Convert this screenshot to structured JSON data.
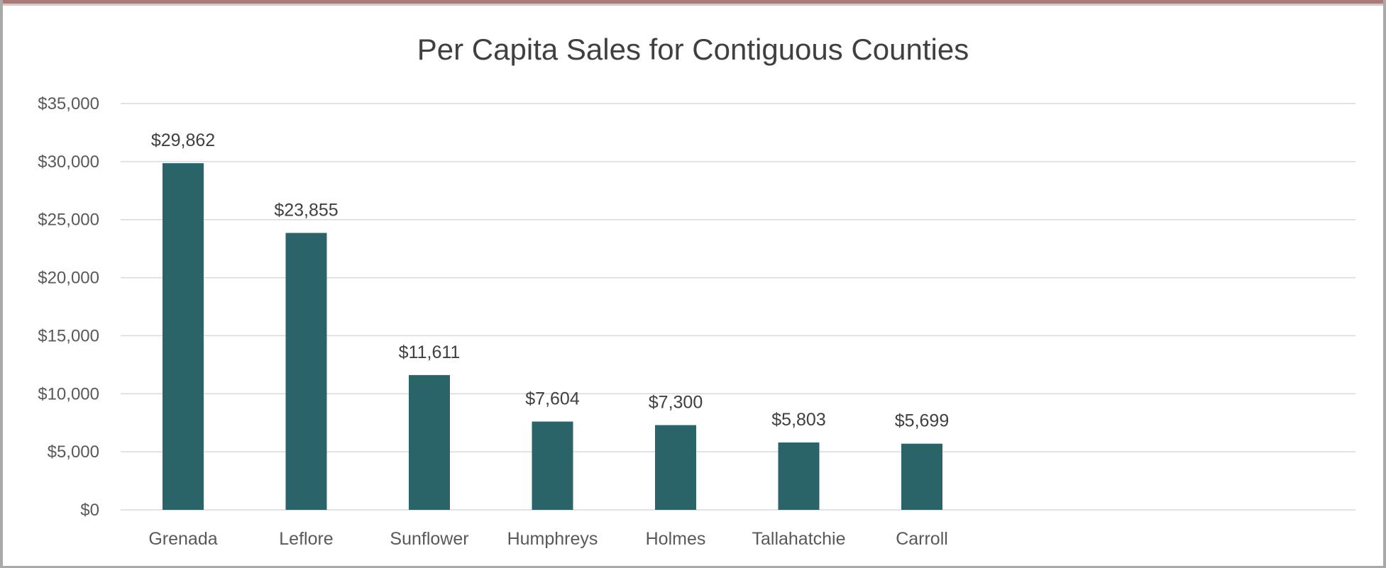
{
  "chart_data": {
    "type": "bar",
    "title": "Per Capita Sales for Contiguous Counties",
    "xlabel": "",
    "ylabel": "",
    "categories": [
      "Grenada",
      "Leflore",
      "Sunflower",
      "Humphreys",
      "Holmes",
      "Tallahatchie",
      "Carroll"
    ],
    "values": [
      29862,
      23855,
      11611,
      7604,
      7300,
      5803,
      5699
    ],
    "data_labels": [
      "$29,862",
      "$23,855",
      "$11,611",
      "$7,604",
      "$7,300",
      "$5,803",
      "$5,699"
    ],
    "ylim": [
      0,
      35000
    ],
    "yticks": [
      0,
      5000,
      10000,
      15000,
      20000,
      25000,
      30000,
      35000
    ],
    "ytick_labels": [
      "$0",
      "$5,000",
      "$10,000",
      "$15,000",
      "$20,000",
      "$25,000",
      "$30,000",
      "$35,000"
    ],
    "grid": true,
    "legend": "none",
    "bar_color": "#2a6468",
    "grid_color": "#d9d9d9"
  }
}
